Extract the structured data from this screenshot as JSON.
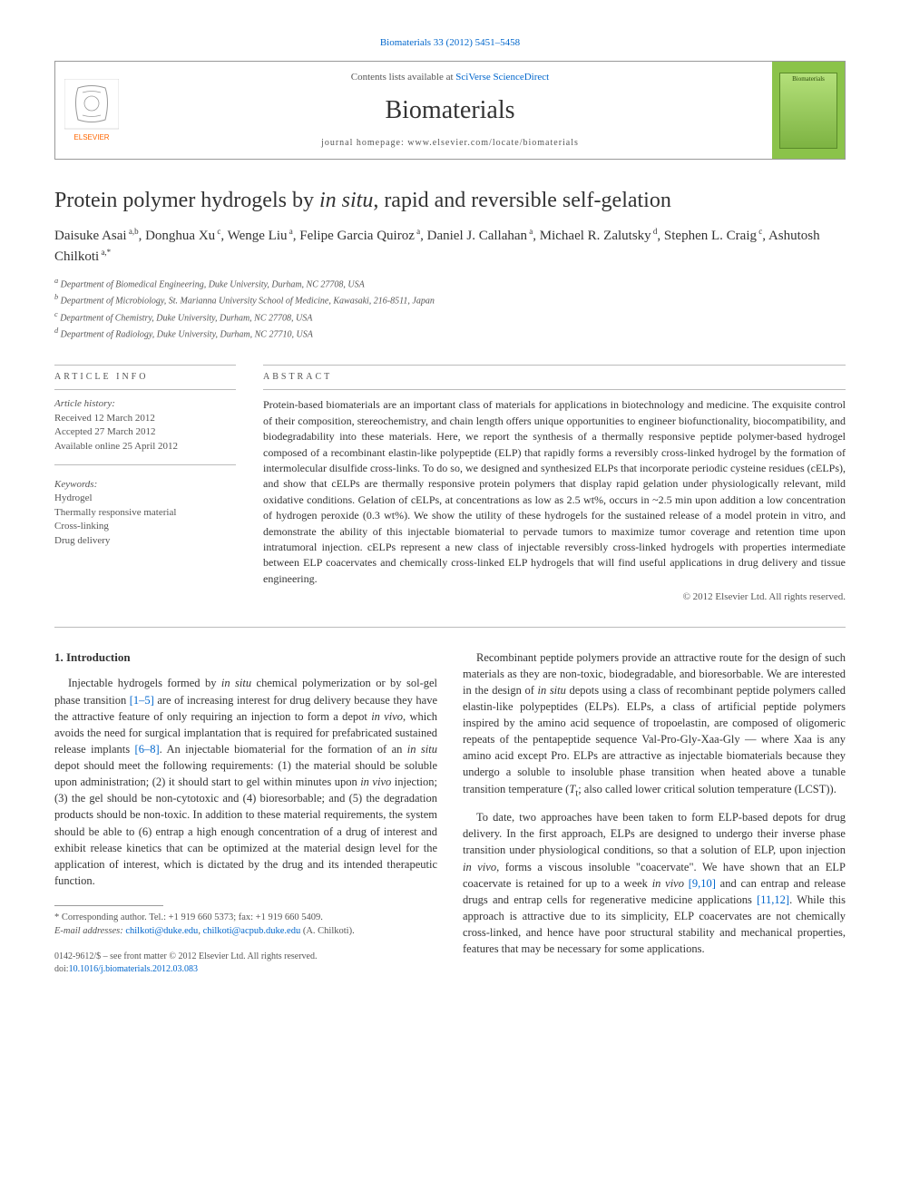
{
  "citation": "Biomaterials 33 (2012) 5451–5458",
  "header": {
    "contents_prefix": "Contents lists available at ",
    "contents_link": "SciVerse ScienceDirect",
    "journal_name": "Biomaterials",
    "homepage_label": "journal homepage: www.elsevier.com/locate/biomaterials",
    "cover_label": "Biomaterials",
    "publisher_logo_color": "#ff6600",
    "publisher_name": "ELSEVIER"
  },
  "title_pre": "Protein polymer hydrogels by ",
  "title_italic": "in situ",
  "title_post": ", rapid and reversible self-gelation",
  "authors_html": "Daisuke Asai|a,b|, Donghua Xu|c|, Wenge Liu|a|, Felipe Garcia Quiroz|a|, Daniel J. Callahan|a|, Michael R. Zalutsky|d|, Stephen L. Craig|c|, Ashutosh Chilkoti|a,*|",
  "affiliations": [
    "a Department of Biomedical Engineering, Duke University, Durham, NC 27708, USA",
    "b Department of Microbiology, St. Marianna University School of Medicine, Kawasaki, 216-8511, Japan",
    "c Department of Chemistry, Duke University, Durham, NC 27708, USA",
    "d Department of Radiology, Duke University, Durham, NC 27710, USA"
  ],
  "info_label": "ARTICLE INFO",
  "abstract_label": "ABSTRACT",
  "history": {
    "label": "Article history:",
    "received": "Received 12 March 2012",
    "accepted": "Accepted 27 March 2012",
    "online": "Available online 25 April 2012"
  },
  "keywords": {
    "label": "Keywords:",
    "items": [
      "Hydrogel",
      "Thermally responsive material",
      "Cross-linking",
      "Drug delivery"
    ]
  },
  "abstract": "Protein-based biomaterials are an important class of materials for applications in biotechnology and medicine. The exquisite control of their composition, stereochemistry, and chain length offers unique opportunities to engineer biofunctionality, biocompatibility, and biodegradability into these materials. Here, we report the synthesis of a thermally responsive peptide polymer-based hydrogel composed of a recombinant elastin-like polypeptide (ELP) that rapidly forms a reversibly cross-linked hydrogel by the formation of intermolecular disulfide cross-links. To do so, we designed and synthesized ELPs that incorporate periodic cysteine residues (cELPs), and show that cELPs are thermally responsive protein polymers that display rapid gelation under physiologically relevant, mild oxidative conditions. Gelation of cELPs, at concentrations as low as 2.5 wt%, occurs in ~2.5 min upon addition a low concentration of hydrogen peroxide (0.3 wt%). We show the utility of these hydrogels for the sustained release of a model protein in vitro, and demonstrate the ability of this injectable biomaterial to pervade tumors to maximize tumor coverage and retention time upon intratumoral injection. cELPs represent a new class of injectable reversibly cross-linked hydrogels with properties intermediate between ELP coacervates and chemically cross-linked ELP hydrogels that will find useful applications in drug delivery and tissue engineering.",
  "copyright": "© 2012 Elsevier Ltd. All rights reserved.",
  "section1_heading": "1. Introduction",
  "intro_p1_a": "Injectable hydrogels formed by ",
  "intro_p1_it1": "in situ",
  "intro_p1_b": " chemical polymerization or by sol-gel phase transition ",
  "intro_p1_ref1": "[1–5]",
  "intro_p1_c": " are of increasing interest for drug delivery because they have the attractive feature of only requiring an injection to form a depot ",
  "intro_p1_it2": "in vivo",
  "intro_p1_d": ", which avoids the need for surgical implantation that is required for prefabricated sustained release implants ",
  "intro_p1_ref2": "[6–8]",
  "intro_p1_e": ". An injectable biomaterial for the formation of an ",
  "intro_p1_it3": "in situ",
  "intro_p1_f": " depot should meet the following requirements: (1) the material should be soluble upon administration; (2) it should start to gel within minutes upon ",
  "intro_p1_it4": "in vivo",
  "intro_p1_g": " injection; (3) the gel should be non-cytotoxic and (4) bioresorbable; and (5) the degradation products should be non-toxic. In addition to these material requirements, the system should be able to (6) entrap a high enough concentration of a drug of interest and exhibit release kinetics that can be optimized at the material design level for the application of interest, which is dictated by the drug and its intended therapeutic function.",
  "intro_p2_a": "Recombinant peptide polymers provide an attractive route for the design of such materials as they are non-toxic, biodegradable, and bioresorbable. We are interested in the design of ",
  "intro_p2_it1": "in situ",
  "intro_p2_b": " depots using a class of recombinant peptide polymers called elastin-like polypeptides (ELPs). ELPs, a class of artificial peptide polymers inspired by the amino acid sequence of tropoelastin, are composed of oligomeric repeats of the pentapeptide sequence Val-Pro-Gly-Xaa-Gly — where Xaa is any amino acid except Pro. ELPs are attractive as injectable biomaterials because they undergo a soluble to insoluble phase transition when heated above a tunable transition temperature (",
  "intro_p2_it2": "T",
  "intro_p2_sub": "t",
  "intro_p2_c": "; also called lower critical solution temperature (LCST)).",
  "intro_p3_a": "To date, two approaches have been taken to form ELP-based depots for drug delivery. In the first approach, ELPs are designed to undergo their inverse phase transition under physiological conditions, so that a solution of ELP, upon injection ",
  "intro_p3_it1": "in vivo",
  "intro_p3_b": ", forms a viscous insoluble \"coacervate\". We have shown that an ELP coacervate is retained for up to a week ",
  "intro_p3_it2": "in vivo",
  "intro_p3_c": " ",
  "intro_p3_ref1": "[9,10]",
  "intro_p3_d": " and can entrap and release drugs and entrap cells for regenerative medicine applications ",
  "intro_p3_ref2": "[11,12]",
  "intro_p3_e": ". While this approach is attractive due to its simplicity, ELP coacervates are not chemically cross-linked, and hence have poor structural stability and mechanical properties, features that may be necessary for some applications.",
  "footnote": {
    "corr_label": "* Corresponding author. Tel.: +1 919 660 5373; fax: +1 919 660 5409.",
    "email_label": "E-mail addresses: ",
    "email1": "chilkoti@duke.edu",
    "email_sep": ", ",
    "email2": "chilkoti@acpub.duke.edu",
    "email_suffix": " (A. Chilkoti)."
  },
  "front_matter": {
    "line1": "0142-9612/$ – see front matter © 2012 Elsevier Ltd. All rights reserved.",
    "doi_label": "doi:",
    "doi": "10.1016/j.biomaterials.2012.03.083"
  },
  "colors": {
    "link": "#0066cc",
    "text": "#333333",
    "muted": "#555555",
    "border": "#999999",
    "cover_bg": "#8bc34a"
  }
}
